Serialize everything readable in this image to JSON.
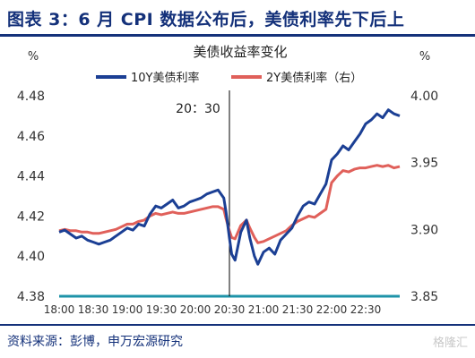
{
  "header": {
    "title": "图表 3：6 月 CPI 数据公布后，美债利率先下后上"
  },
  "footer": {
    "source": "资料来源：彭博，申万宏源研究",
    "watermark": "格隆汇"
  },
  "colors": {
    "brand": "#14317a",
    "series_10y": "#1b3f94",
    "series_2y": "#e0605a",
    "baseline": "#1e93a8",
    "event_line": "#000000",
    "tick_text": "#333333"
  },
  "chart_data": {
    "type": "line",
    "title": "美债收益率变化",
    "left_unit": "%",
    "right_unit": "%",
    "y_left_lim": [
      4.38,
      4.48
    ],
    "y_left_ticks": [
      "4.38",
      "4.40",
      "4.42",
      "4.44",
      "4.46",
      "4.48"
    ],
    "y_right_lim": [
      3.85,
      4.0
    ],
    "y_right_ticks": [
      "3.85",
      "3.90",
      "3.95",
      "4.00"
    ],
    "x_lim": [
      "18:00",
      "23:00"
    ],
    "x_ticks": [
      "18:00",
      "18:30",
      "19:00",
      "19:30",
      "20:00",
      "20:30",
      "21:00",
      "21:30",
      "22:00",
      "22:30"
    ],
    "event": {
      "time": "20:30",
      "label": "20：30"
    },
    "grid": false,
    "legend_position": "top-center",
    "series": [
      {
        "name": "10Y美债利率",
        "axis": "left",
        "points": [
          [
            "18:00",
            4.412
          ],
          [
            "18:05",
            4.413
          ],
          [
            "18:10",
            4.411
          ],
          [
            "18:15",
            4.409
          ],
          [
            "18:20",
            4.41
          ],
          [
            "18:25",
            4.408
          ],
          [
            "18:30",
            4.407
          ],
          [
            "18:35",
            4.406
          ],
          [
            "18:40",
            4.407
          ],
          [
            "18:45",
            4.408
          ],
          [
            "18:50",
            4.41
          ],
          [
            "18:55",
            4.412
          ],
          [
            "19:00",
            4.414
          ],
          [
            "19:05",
            4.413
          ],
          [
            "19:10",
            4.416
          ],
          [
            "19:15",
            4.415
          ],
          [
            "19:20",
            4.421
          ],
          [
            "19:25",
            4.425
          ],
          [
            "19:30",
            4.424
          ],
          [
            "19:35",
            4.426
          ],
          [
            "19:40",
            4.428
          ],
          [
            "19:45",
            4.424
          ],
          [
            "19:50",
            4.425
          ],
          [
            "19:55",
            4.427
          ],
          [
            "20:00",
            4.428
          ],
          [
            "20:05",
            4.429
          ],
          [
            "20:10",
            4.431
          ],
          [
            "20:15",
            4.432
          ],
          [
            "20:20",
            4.433
          ],
          [
            "20:25",
            4.429
          ],
          [
            "20:27",
            4.422
          ],
          [
            "20:30",
            4.409
          ],
          [
            "20:32",
            4.401
          ],
          [
            "20:35",
            4.398
          ],
          [
            "20:40",
            4.412
          ],
          [
            "20:45",
            4.418
          ],
          [
            "20:48",
            4.409
          ],
          [
            "20:52",
            4.4
          ],
          [
            "20:55",
            4.396
          ],
          [
            "21:00",
            4.402
          ],
          [
            "21:05",
            4.404
          ],
          [
            "21:10",
            4.401
          ],
          [
            "21:15",
            4.408
          ],
          [
            "21:20",
            4.411
          ],
          [
            "21:25",
            4.414
          ],
          [
            "21:30",
            4.42
          ],
          [
            "21:35",
            4.425
          ],
          [
            "21:40",
            4.427
          ],
          [
            "21:45",
            4.426
          ],
          [
            "21:50",
            4.431
          ],
          [
            "21:55",
            4.436
          ],
          [
            "22:00",
            4.448
          ],
          [
            "22:05",
            4.451
          ],
          [
            "22:10",
            4.455
          ],
          [
            "22:15",
            4.453
          ],
          [
            "22:20",
            4.457
          ],
          [
            "22:25",
            4.461
          ],
          [
            "22:30",
            4.466
          ],
          [
            "22:35",
            4.468
          ],
          [
            "22:40",
            4.471
          ],
          [
            "22:45",
            4.469
          ],
          [
            "22:50",
            4.473
          ],
          [
            "22:55",
            4.471
          ],
          [
            "23:00",
            4.47
          ]
        ]
      },
      {
        "name": "2Y美债利率（右）",
        "axis": "right",
        "points": [
          [
            "18:00",
            3.899
          ],
          [
            "18:05",
            3.9
          ],
          [
            "18:10",
            3.899
          ],
          [
            "18:15",
            3.899
          ],
          [
            "18:20",
            3.898
          ],
          [
            "18:25",
            3.898
          ],
          [
            "18:30",
            3.897
          ],
          [
            "18:35",
            3.897
          ],
          [
            "18:40",
            3.898
          ],
          [
            "18:45",
            3.899
          ],
          [
            "18:50",
            3.9
          ],
          [
            "18:55",
            3.902
          ],
          [
            "19:00",
            3.904
          ],
          [
            "19:05",
            3.904
          ],
          [
            "19:10",
            3.906
          ],
          [
            "19:15",
            3.907
          ],
          [
            "19:20",
            3.91
          ],
          [
            "19:25",
            3.912
          ],
          [
            "19:30",
            3.911
          ],
          [
            "19:35",
            3.912
          ],
          [
            "19:40",
            3.913
          ],
          [
            "19:45",
            3.912
          ],
          [
            "19:50",
            3.912
          ],
          [
            "19:55",
            3.913
          ],
          [
            "20:00",
            3.914
          ],
          [
            "20:05",
            3.915
          ],
          [
            "20:10",
            3.916
          ],
          [
            "20:15",
            3.917
          ],
          [
            "20:20",
            3.917
          ],
          [
            "20:25",
            3.915
          ],
          [
            "20:27",
            3.908
          ],
          [
            "20:30",
            3.899
          ],
          [
            "20:32",
            3.894
          ],
          [
            "20:35",
            3.893
          ],
          [
            "20:40",
            3.903
          ],
          [
            "20:45",
            3.907
          ],
          [
            "20:48",
            3.901
          ],
          [
            "20:52",
            3.894
          ],
          [
            "20:55",
            3.89
          ],
          [
            "21:00",
            3.891
          ],
          [
            "21:05",
            3.893
          ],
          [
            "21:10",
            3.895
          ],
          [
            "21:15",
            3.897
          ],
          [
            "21:20",
            3.899
          ],
          [
            "21:25",
            3.903
          ],
          [
            "21:30",
            3.906
          ],
          [
            "21:35",
            3.908
          ],
          [
            "21:40",
            3.91
          ],
          [
            "21:45",
            3.909
          ],
          [
            "21:50",
            3.912
          ],
          [
            "21:55",
            3.915
          ],
          [
            "22:00",
            3.935
          ],
          [
            "22:05",
            3.94
          ],
          [
            "22:10",
            3.944
          ],
          [
            "22:15",
            3.943
          ],
          [
            "22:20",
            3.945
          ],
          [
            "22:25",
            3.946
          ],
          [
            "22:30",
            3.946
          ],
          [
            "22:35",
            3.947
          ],
          [
            "22:40",
            3.948
          ],
          [
            "22:45",
            3.947
          ],
          [
            "22:50",
            3.948
          ],
          [
            "22:55",
            3.946
          ],
          [
            "23:00",
            3.947
          ]
        ]
      }
    ]
  }
}
